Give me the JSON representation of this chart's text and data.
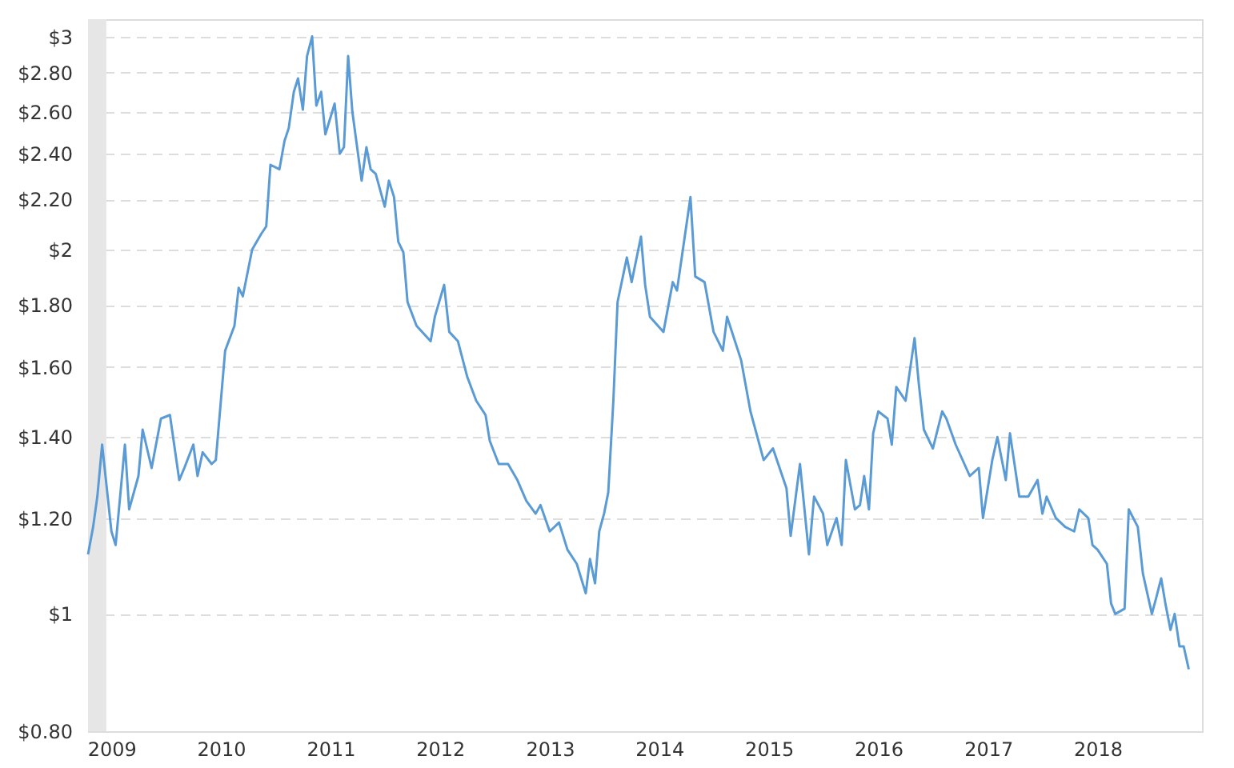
{
  "chart_data": {
    "type": "line",
    "log": "y",
    "grid": "y",
    "line_style": "solid",
    "marker": "none",
    "xlim": [
      "2008-10-15",
      "2018-12-15"
    ],
    "xticks": [
      "2009",
      "2010",
      "2011",
      "2012",
      "2013",
      "2014",
      "2015",
      "2016",
      "2017",
      "2018"
    ],
    "ylim": [
      0.8,
      3.1
    ],
    "yticks": [
      {
        "value": 0.8,
        "label": "$0.80"
      },
      {
        "value": 1,
        "label": "$1"
      },
      {
        "value": 1.2,
        "label": "$1.20"
      },
      {
        "value": 1.4,
        "label": "$1.40"
      },
      {
        "value": 1.6,
        "label": "$1.60"
      },
      {
        "value": 1.8,
        "label": "$1.80"
      },
      {
        "value": 2,
        "label": "$2"
      },
      {
        "value": 2.2,
        "label": "$2.20"
      },
      {
        "value": 2.4,
        "label": "$2.40"
      },
      {
        "value": 2.6,
        "label": "$2.60"
      },
      {
        "value": 2.8,
        "label": "$2.80"
      },
      {
        "value": 3,
        "label": "$3"
      }
    ],
    "bands": [
      {
        "axis": "x",
        "from": "2008-10-15",
        "to": "2008-12-15",
        "color": "#e6e6e6"
      }
    ],
    "x": [
      "2008-10-15",
      "2008-11-01",
      "2008-11-15",
      "2008-12-01",
      "2009-01-01",
      "2009-01-15",
      "2009-02-15",
      "2009-03-01",
      "2009-04-01",
      "2009-04-15",
      "2009-05-15",
      "2009-06-15",
      "2009-07-15",
      "2009-08-15",
      "2009-09-01",
      "2009-10-01",
      "2009-10-15",
      "2009-11-01",
      "2009-12-01",
      "2009-12-15",
      "2010-01-15",
      "2010-02-15",
      "2010-03-01",
      "2010-03-15",
      "2010-04-15",
      "2010-05-15",
      "2010-06-01",
      "2010-06-15",
      "2010-07-15",
      "2010-08-01",
      "2010-08-15",
      "2010-09-01",
      "2010-09-15",
      "2010-10-01",
      "2010-10-15",
      "2010-11-01",
      "2010-11-15",
      "2010-12-01",
      "2010-12-15",
      "2011-01-15",
      "2011-02-01",
      "2011-02-15",
      "2011-03-01",
      "2011-03-15",
      "2011-04-15",
      "2011-05-01",
      "2011-05-15",
      "2011-06-01",
      "2011-07-01",
      "2011-07-15",
      "2011-08-01",
      "2011-08-15",
      "2011-09-01",
      "2011-09-15",
      "2011-10-15",
      "2011-12-01",
      "2011-12-15",
      "2012-01-15",
      "2012-02-01",
      "2012-03-01",
      "2012-04-01",
      "2012-05-01",
      "2012-06-01",
      "2012-06-15",
      "2012-07-15",
      "2012-08-15",
      "2012-09-15",
      "2012-10-15",
      "2012-11-15",
      "2012-12-01",
      "2013-01-01",
      "2013-02-01",
      "2013-03-01",
      "2013-04-01",
      "2013-05-01",
      "2013-05-15",
      "2013-06-01",
      "2013-06-15",
      "2013-07-01",
      "2013-07-15",
      "2013-08-01",
      "2013-08-15",
      "2013-09-15",
      "2013-10-01",
      "2013-11-01",
      "2013-11-15",
      "2013-12-01",
      "2014-01-15",
      "2014-02-15",
      "2014-03-01",
      "2014-04-15",
      "2014-05-01",
      "2014-06-01",
      "2014-07-01",
      "2014-08-01",
      "2014-08-15",
      "2014-10-01",
      "2014-11-01",
      "2014-12-15",
      "2015-01-15",
      "2015-03-01",
      "2015-03-15",
      "2015-04-15",
      "2015-05-15",
      "2015-06-01",
      "2015-07-01",
      "2015-07-15",
      "2015-08-15",
      "2015-09-01",
      "2015-09-15",
      "2015-10-15",
      "2015-11-01",
      "2015-11-15",
      "2015-12-01",
      "2015-12-15",
      "2016-01-01",
      "2016-02-01",
      "2016-02-15",
      "2016-03-01",
      "2016-04-01",
      "2016-05-01",
      "2016-05-15",
      "2016-06-01",
      "2016-07-01",
      "2016-08-01",
      "2016-08-15",
      "2016-09-15",
      "2016-11-01",
      "2016-12-01",
      "2016-12-15",
      "2017-01-15",
      "2017-02-01",
      "2017-03-01",
      "2017-03-15",
      "2017-04-15",
      "2017-05-15",
      "2017-06-15",
      "2017-07-01",
      "2017-07-15",
      "2017-08-15",
      "2017-09-15",
      "2017-10-15",
      "2017-11-01",
      "2017-12-01",
      "2017-12-15",
      "2018-01-01",
      "2018-02-01",
      "2018-02-15",
      "2018-03-01",
      "2018-04-01",
      "2018-04-15",
      "2018-05-15",
      "2018-06-01",
      "2018-07-01",
      "2018-07-15",
      "2018-08-01",
      "2018-08-15",
      "2018-09-01",
      "2018-09-15",
      "2018-10-01",
      "2018-10-15",
      "2018-11-01"
    ],
    "series": [
      {
        "color": "#5b9bd5",
        "values": [
          1.12,
          1.18,
          1.25,
          1.38,
          1.17,
          1.14,
          1.38,
          1.22,
          1.3,
          1.42,
          1.32,
          1.45,
          1.46,
          1.29,
          1.32,
          1.38,
          1.3,
          1.36,
          1.33,
          1.34,
          1.65,
          1.73,
          1.86,
          1.83,
          2.0,
          2.06,
          2.09,
          2.35,
          2.33,
          2.46,
          2.52,
          2.7,
          2.77,
          2.61,
          2.89,
          3.0,
          2.63,
          2.7,
          2.49,
          2.64,
          2.4,
          2.43,
          2.89,
          2.6,
          2.28,
          2.43,
          2.33,
          2.31,
          2.17,
          2.28,
          2.21,
          2.03,
          1.99,
          1.81,
          1.73,
          1.68,
          1.76,
          1.87,
          1.71,
          1.68,
          1.57,
          1.5,
          1.46,
          1.39,
          1.33,
          1.33,
          1.29,
          1.24,
          1.21,
          1.23,
          1.17,
          1.19,
          1.13,
          1.1,
          1.04,
          1.11,
          1.06,
          1.17,
          1.21,
          1.26,
          1.5,
          1.81,
          1.97,
          1.88,
          2.05,
          1.87,
          1.76,
          1.71,
          1.88,
          1.85,
          2.21,
          1.9,
          1.88,
          1.71,
          1.65,
          1.76,
          1.62,
          1.47,
          1.34,
          1.37,
          1.27,
          1.16,
          1.33,
          1.12,
          1.25,
          1.21,
          1.14,
          1.2,
          1.14,
          1.34,
          1.22,
          1.23,
          1.3,
          1.22,
          1.41,
          1.47,
          1.45,
          1.38,
          1.54,
          1.5,
          1.69,
          1.55,
          1.42,
          1.37,
          1.47,
          1.45,
          1.38,
          1.3,
          1.32,
          1.2,
          1.34,
          1.4,
          1.29,
          1.41,
          1.25,
          1.25,
          1.29,
          1.21,
          1.25,
          1.2,
          1.18,
          1.17,
          1.22,
          1.2,
          1.14,
          1.13,
          1.1,
          1.02,
          1.0,
          1.01,
          1.22,
          1.18,
          1.08,
          1.0,
          1.03,
          1.07,
          1.02,
          0.97,
          1.0,
          0.94,
          0.94,
          0.9
        ]
      }
    ]
  }
}
